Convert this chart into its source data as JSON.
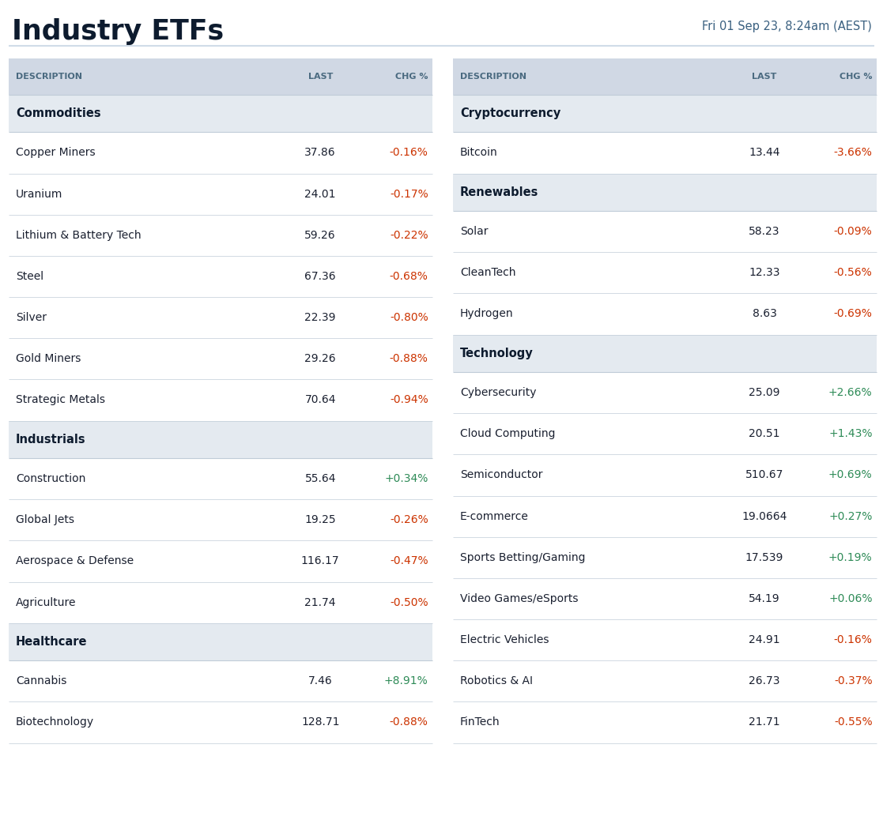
{
  "title": "Industry ETFs",
  "subtitle": "Fri 01 Sep 23, 8:24am (AEST)",
  "title_color": "#0d1b2e",
  "subtitle_color": "#3a6080",
  "bg_color": "#ffffff",
  "header_bg": "#d0d8e4",
  "section_bg": "#e4eaf0",
  "row_bg": "#ffffff",
  "header_text_color": "#4a6a80",
  "section_text_color": "#0d1b2e",
  "row_text_color": "#1a2030",
  "positive_color": "#2e8b57",
  "negative_color": "#cc3300",
  "separator_color": "#c0ccd8",
  "title_sep_color": "#d0dce8",
  "left_table": {
    "headers": [
      "DESCRIPTION",
      "LAST",
      "CHG %"
    ],
    "sections": [
      {
        "name": "Commodities",
        "rows": [
          [
            "Copper Miners",
            "37.86",
            "-0.16%"
          ],
          [
            "Uranium",
            "24.01",
            "-0.17%"
          ],
          [
            "Lithium & Battery Tech",
            "59.26",
            "-0.22%"
          ],
          [
            "Steel",
            "67.36",
            "-0.68%"
          ],
          [
            "Silver",
            "22.39",
            "-0.80%"
          ],
          [
            "Gold Miners",
            "29.26",
            "-0.88%"
          ],
          [
            "Strategic Metals",
            "70.64",
            "-0.94%"
          ]
        ]
      },
      {
        "name": "Industrials",
        "rows": [
          [
            "Construction",
            "55.64",
            "+0.34%"
          ],
          [
            "Global Jets",
            "19.25",
            "-0.26%"
          ],
          [
            "Aerospace & Defense",
            "116.17",
            "-0.47%"
          ],
          [
            "Agriculture",
            "21.74",
            "-0.50%"
          ]
        ]
      },
      {
        "name": "Healthcare",
        "rows": [
          [
            "Cannabis",
            "7.46",
            "+8.91%"
          ],
          [
            "Biotechnology",
            "128.71",
            "-0.88%"
          ]
        ]
      }
    ]
  },
  "right_table": {
    "headers": [
      "DESCRIPTION",
      "LAST",
      "CHG %"
    ],
    "sections": [
      {
        "name": "Cryptocurrency",
        "rows": [
          [
            "Bitcoin",
            "13.44",
            "-3.66%"
          ]
        ]
      },
      {
        "name": "Renewables",
        "rows": [
          [
            "Solar",
            "58.23",
            "-0.09%"
          ],
          [
            "CleanTech",
            "12.33",
            "-0.56%"
          ],
          [
            "Hydrogen",
            "8.63",
            "-0.69%"
          ]
        ]
      },
      {
        "name": "Technology",
        "rows": [
          [
            "Cybersecurity",
            "25.09",
            "+2.66%"
          ],
          [
            "Cloud Computing",
            "20.51",
            "+1.43%"
          ],
          [
            "Semiconductor",
            "510.67",
            "+0.69%"
          ],
          [
            "E-commerce",
            "19.0664",
            "+0.27%"
          ],
          [
            "Sports Betting/Gaming",
            "17.539",
            "+0.19%"
          ],
          [
            "Video Games/eSports",
            "54.19",
            "+0.06%"
          ],
          [
            "Electric Vehicles",
            "24.91",
            "-0.16%"
          ],
          [
            "Robotics & AI",
            "26.73",
            "-0.37%"
          ],
          [
            "FinTech",
            "21.71",
            "-0.55%"
          ]
        ]
      }
    ]
  }
}
